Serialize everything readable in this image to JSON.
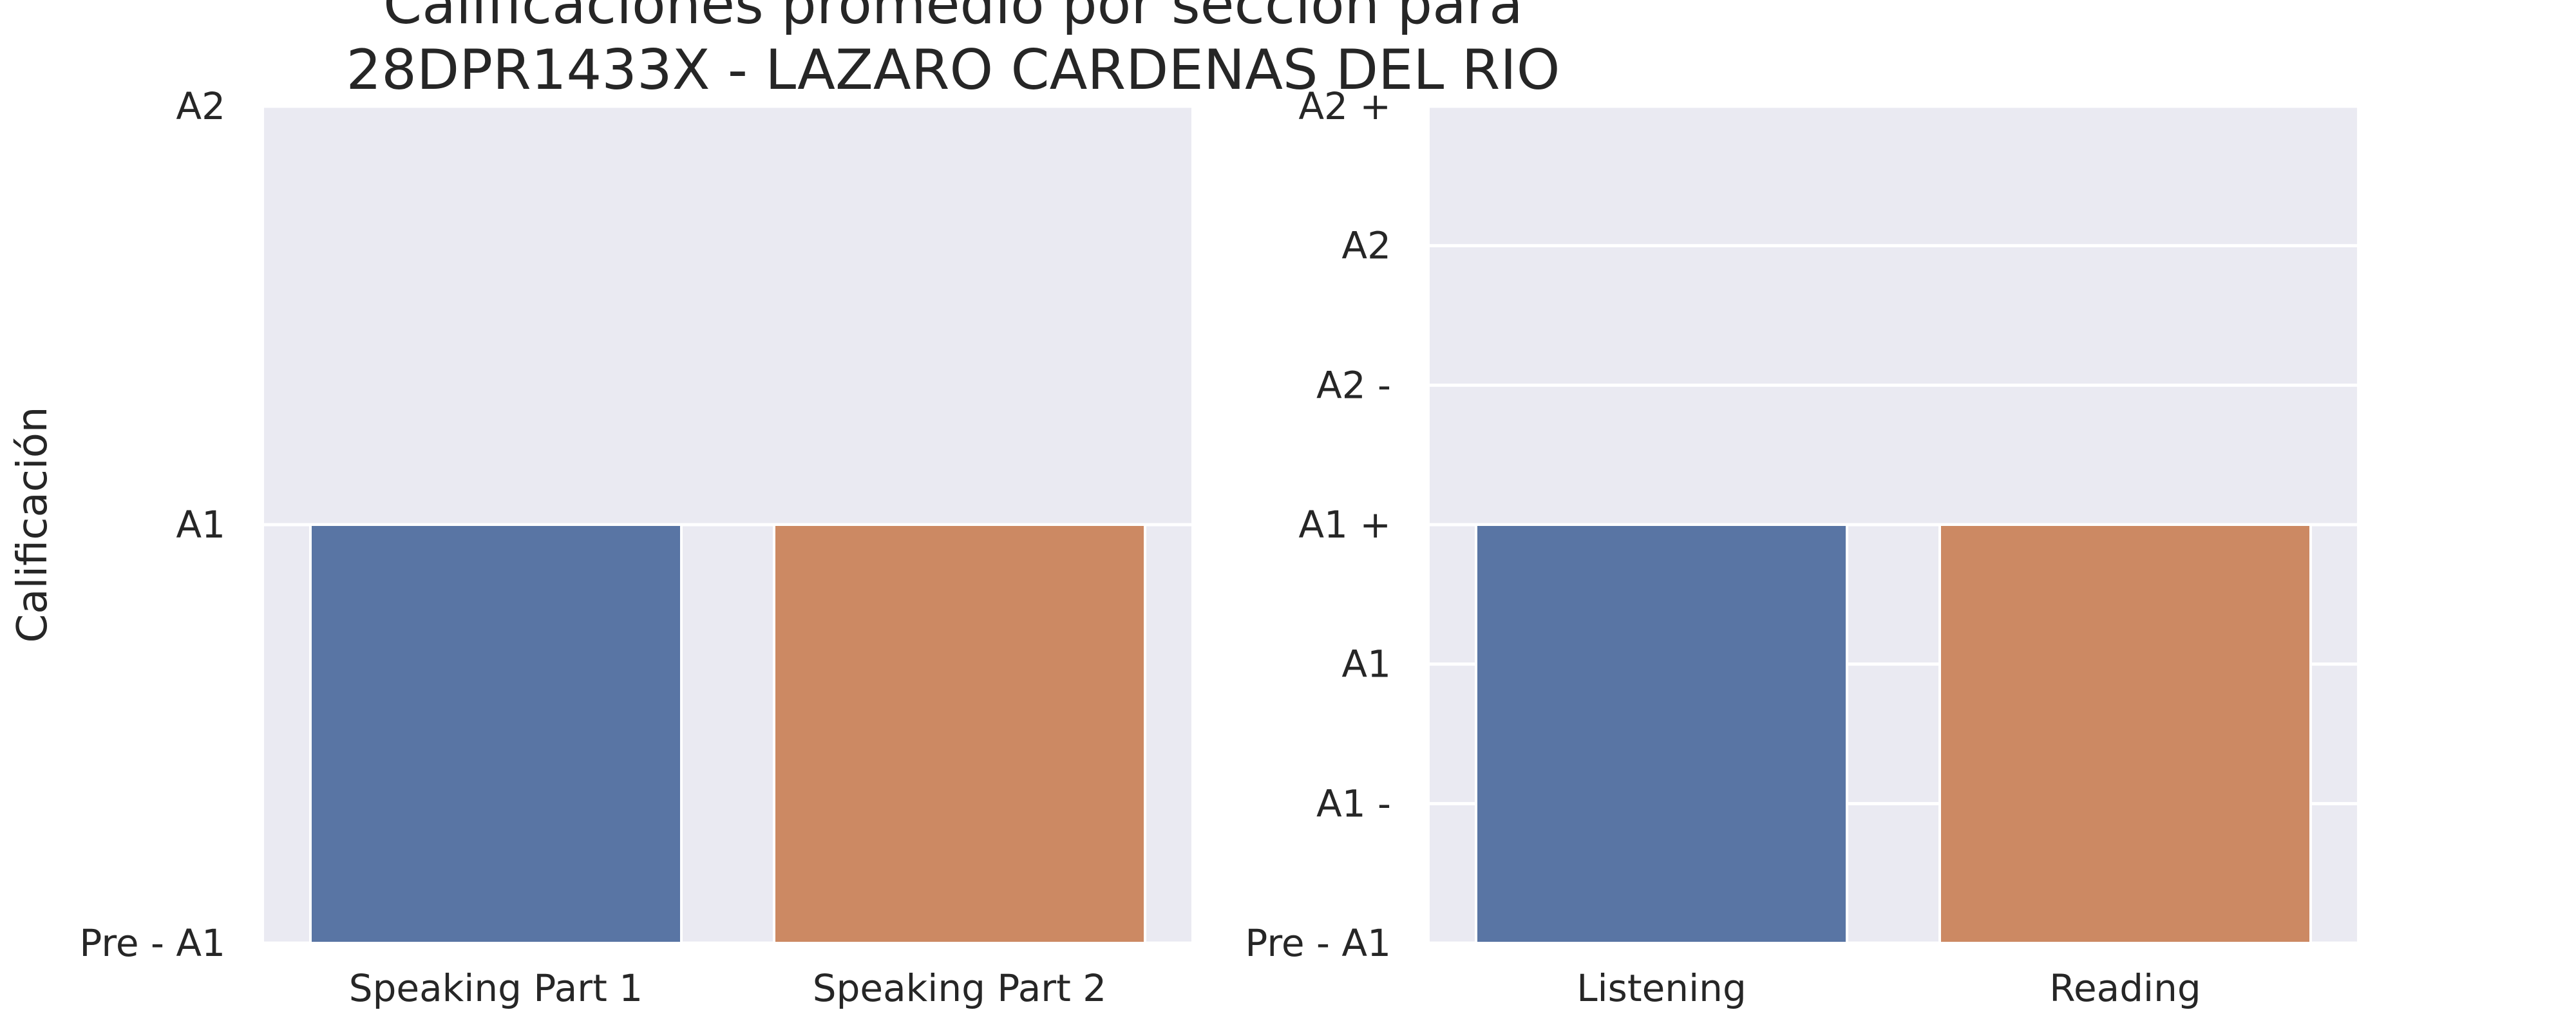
{
  "title": [
    "Calificaciones promedio por sección para",
    "28DPR1433X - LAZARO CARDENAS DEL RIO"
  ],
  "colors": {
    "background": "#eaeaf2",
    "grid": "#ffffff",
    "series_1": "#5975a4",
    "series_2": "#cc8963"
  },
  "chart_data": [
    {
      "type": "bar",
      "title": "",
      "xlabel": "",
      "ylabel": "Calificación",
      "ytick_labels": [
        "Pre - A1",
        "A1",
        "A2"
      ],
      "ylim": [
        0,
        2
      ],
      "grid": true,
      "categories": [
        "Speaking Part 1",
        "Speaking Part 2"
      ],
      "values": [
        1,
        1
      ],
      "bar_colors": [
        "#5975a4",
        "#cc8963"
      ]
    },
    {
      "type": "bar",
      "title": "",
      "xlabel": "",
      "ylabel": "",
      "ytick_labels": [
        "Pre - A1",
        "A1 -",
        "A1",
        "A1 +",
        "A2 -",
        "A2",
        "A2 +"
      ],
      "ylim": [
        0,
        6
      ],
      "grid": true,
      "categories": [
        "Listening",
        "Reading"
      ],
      "values": [
        3,
        3
      ],
      "bar_colors": [
        "#5975a4",
        "#cc8963"
      ]
    }
  ]
}
